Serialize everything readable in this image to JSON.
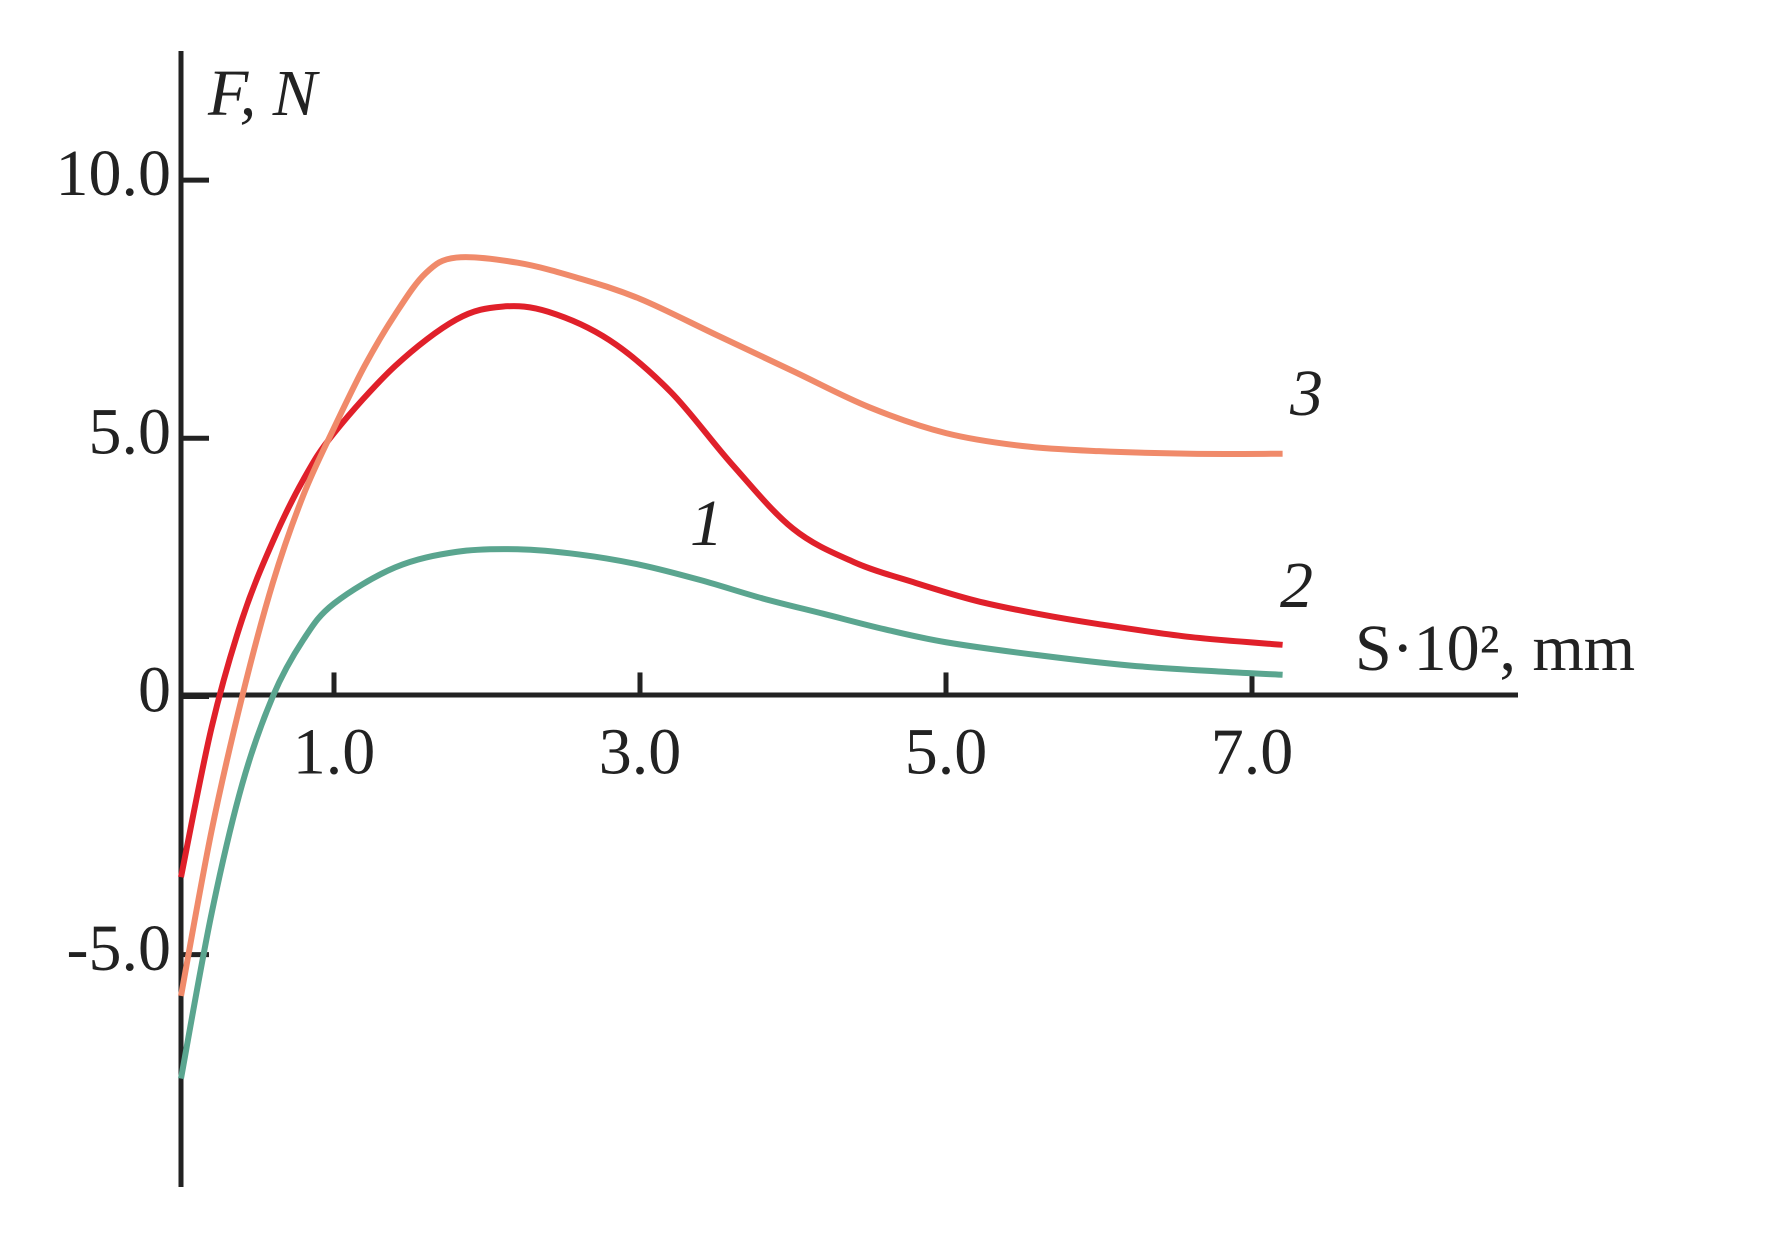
{
  "chart_data": {
    "type": "line",
    "y_label": "F, N",
    "x_label": "S·10², mm",
    "xlim": [
      0,
      8.75
    ],
    "ylim": [
      -9.5,
      12.5
    ],
    "xticks": [
      {
        "value": 1,
        "label": "1.0"
      },
      {
        "value": 3,
        "label": "3.0"
      },
      {
        "value": 5,
        "label": "5.0"
      },
      {
        "value": 7,
        "label": "7.0"
      }
    ],
    "yticks": [
      {
        "value": -5,
        "label": "-5.0"
      },
      0,
      {
        "value": 5,
        "label": "5.0"
      },
      {
        "value": 10,
        "label": "10.0"
      }
    ],
    "series": [
      {
        "name": "1",
        "color": "#5aa58f",
        "x": [
          0,
          0.2,
          0.4,
          0.6,
          0.8,
          1.0,
          1.4,
          1.8,
          2.2,
          2.6,
          3.0,
          3.4,
          3.8,
          4.2,
          4.6,
          5.0,
          5.6,
          6.2,
          6.8,
          7.2
        ],
        "values": [
          -7.4,
          -4.2,
          -1.7,
          0,
          1.1,
          1.8,
          2.5,
          2.8,
          2.85,
          2.75,
          2.55,
          2.25,
          1.9,
          1.6,
          1.3,
          1.05,
          0.8,
          0.6,
          0.48,
          0.42
        ]
      },
      {
        "name": "2",
        "color": "#e0202a",
        "x": [
          0,
          0.2,
          0.4,
          0.6,
          0.8,
          1.0,
          1.4,
          1.8,
          2.1,
          2.4,
          2.8,
          3.2,
          3.6,
          4.0,
          4.4,
          4.8,
          5.2,
          5.6,
          6.0,
          6.6,
          7.2
        ],
        "values": [
          -3.5,
          -0.6,
          1.5,
          3.0,
          4.2,
          5.1,
          6.4,
          7.3,
          7.55,
          7.45,
          6.9,
          5.9,
          4.5,
          3.25,
          2.6,
          2.2,
          1.85,
          1.6,
          1.4,
          1.15,
          1.0
        ]
      },
      {
        "name": "3",
        "color": "#f08a6a",
        "x": [
          0,
          0.2,
          0.4,
          0.6,
          0.8,
          1.0,
          1.2,
          1.4,
          1.6,
          1.8,
          2.2,
          2.6,
          3.0,
          3.5,
          4.0,
          4.5,
          5.0,
          5.5,
          6.0,
          6.6,
          7.2
        ],
        "values": [
          -5.8,
          -2.6,
          0,
          2.2,
          3.9,
          5.2,
          6.4,
          7.4,
          8.2,
          8.5,
          8.4,
          8.1,
          7.7,
          7.0,
          6.3,
          5.6,
          5.1,
          4.85,
          4.75,
          4.7,
          4.7
        ]
      }
    ]
  }
}
